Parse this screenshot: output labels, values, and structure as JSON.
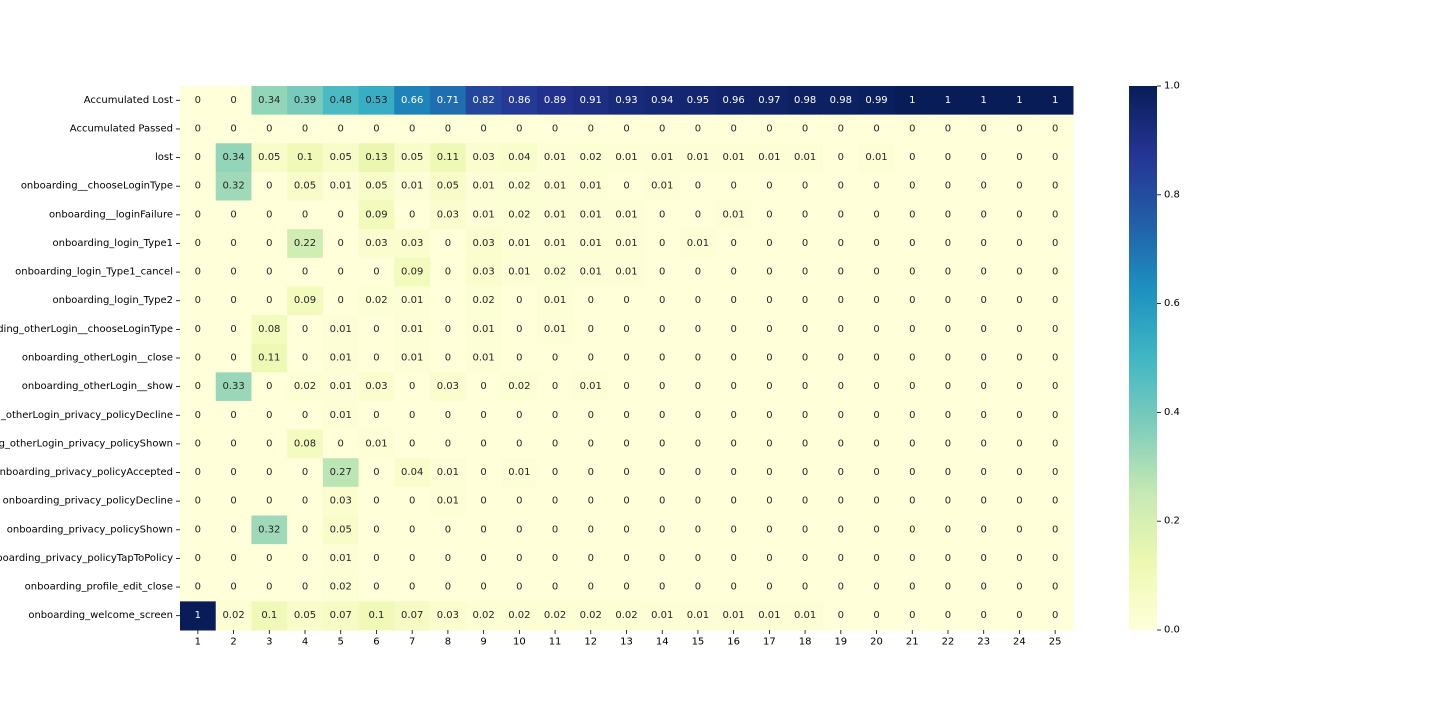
{
  "chart_data": {
    "type": "heatmap",
    "title": "",
    "xlabel": "",
    "ylabel": "",
    "columns": [
      "1",
      "2",
      "3",
      "4",
      "5",
      "6",
      "7",
      "8",
      "9",
      "10",
      "11",
      "12",
      "13",
      "14",
      "15",
      "16",
      "17",
      "18",
      "19",
      "20",
      "21",
      "22",
      "23",
      "24",
      "25"
    ],
    "rows": [
      "Accumulated Lost",
      "Accumulated Passed",
      "lost",
      "onboarding__chooseLoginType",
      "onboarding__loginFailure",
      "onboarding_login_Type1",
      "onboarding_login_Type1_cancel",
      "onboarding_login_Type2",
      "onboarding_otherLogin__chooseLoginType",
      "onboarding_otherLogin__close",
      "onboarding_otherLogin__show",
      "onboarding_otherLogin_privacy_policyDecline",
      "onboarding_otherLogin_privacy_policyShown",
      "onboarding_privacy_policyAccepted",
      "onboarding_privacy_policyDecline",
      "onboarding_privacy_policyShown",
      "onboarding_privacy_policyTapToPolicy",
      "onboarding_profile_edit_close",
      "onboarding_welcome_screen"
    ],
    "values": [
      [
        0,
        0,
        0.34,
        0.39,
        0.48,
        0.53,
        0.66,
        0.71,
        0.82,
        0.86,
        0.89,
        0.91,
        0.93,
        0.94,
        0.95,
        0.96,
        0.97,
        0.98,
        0.98,
        0.99,
        1,
        1,
        1,
        1,
        1
      ],
      [
        0,
        0,
        0,
        0,
        0,
        0,
        0,
        0,
        0,
        0,
        0,
        0,
        0,
        0,
        0,
        0,
        0,
        0,
        0,
        0,
        0,
        0,
        0,
        0,
        0
      ],
      [
        0,
        0.34,
        0.05,
        0.1,
        0.05,
        0.13,
        0.05,
        0.11,
        0.03,
        0.04,
        0.01,
        0.02,
        0.01,
        0.01,
        0.01,
        0.01,
        0.01,
        0.01,
        0,
        0.01,
        0,
        0,
        0,
        0,
        0
      ],
      [
        0,
        0.32,
        0,
        0.05,
        0.01,
        0.05,
        0.01,
        0.05,
        0.01,
        0.02,
        0.01,
        0.01,
        0,
        0.01,
        0,
        0,
        0,
        0,
        0,
        0,
        0,
        0,
        0,
        0,
        0
      ],
      [
        0,
        0,
        0,
        0,
        0,
        0.09,
        0,
        0.03,
        0.01,
        0.02,
        0.01,
        0.01,
        0.01,
        0,
        0,
        0.01,
        0,
        0,
        0,
        0,
        0,
        0,
        0,
        0,
        0
      ],
      [
        0,
        0,
        0,
        0.22,
        0,
        0.03,
        0.03,
        0,
        0.03,
        0.01,
        0.01,
        0.01,
        0.01,
        0,
        0.01,
        0,
        0,
        0,
        0,
        0,
        0,
        0,
        0,
        0,
        0
      ],
      [
        0,
        0,
        0,
        0,
        0,
        0,
        0.09,
        0,
        0.03,
        0.01,
        0.02,
        0.01,
        0.01,
        0,
        0,
        0,
        0,
        0,
        0,
        0,
        0,
        0,
        0,
        0,
        0
      ],
      [
        0,
        0,
        0,
        0.09,
        0,
        0.02,
        0.01,
        0,
        0.02,
        0,
        0.01,
        0,
        0,
        0,
        0,
        0,
        0,
        0,
        0,
        0,
        0,
        0,
        0,
        0,
        0
      ],
      [
        0,
        0,
        0.08,
        0,
        0.01,
        0,
        0.01,
        0,
        0.01,
        0,
        0.01,
        0,
        0,
        0,
        0,
        0,
        0,
        0,
        0,
        0,
        0,
        0,
        0,
        0,
        0
      ],
      [
        0,
        0,
        0.11,
        0,
        0.01,
        0,
        0.01,
        0,
        0.01,
        0,
        0,
        0,
        0,
        0,
        0,
        0,
        0,
        0,
        0,
        0,
        0,
        0,
        0,
        0,
        0
      ],
      [
        0,
        0.33,
        0,
        0.02,
        0.01,
        0.03,
        0,
        0.03,
        0,
        0.02,
        0,
        0.01,
        0,
        0,
        0,
        0,
        0,
        0,
        0,
        0,
        0,
        0,
        0,
        0,
        0
      ],
      [
        0,
        0,
        0,
        0,
        0.01,
        0,
        0,
        0,
        0,
        0,
        0,
        0,
        0,
        0,
        0,
        0,
        0,
        0,
        0,
        0,
        0,
        0,
        0,
        0,
        0
      ],
      [
        0,
        0,
        0,
        0.08,
        0,
        0.01,
        0,
        0,
        0,
        0,
        0,
        0,
        0,
        0,
        0,
        0,
        0,
        0,
        0,
        0,
        0,
        0,
        0,
        0,
        0
      ],
      [
        0,
        0,
        0,
        0,
        0.27,
        0,
        0.04,
        0.01,
        0,
        0.01,
        0,
        0,
        0,
        0,
        0,
        0,
        0,
        0,
        0,
        0,
        0,
        0,
        0,
        0,
        0
      ],
      [
        0,
        0,
        0,
        0,
        0.03,
        0,
        0,
        0.01,
        0,
        0,
        0,
        0,
        0,
        0,
        0,
        0,
        0,
        0,
        0,
        0,
        0,
        0,
        0,
        0,
        0
      ],
      [
        0,
        0,
        0.32,
        0,
        0.05,
        0,
        0,
        0,
        0,
        0,
        0,
        0,
        0,
        0,
        0,
        0,
        0,
        0,
        0,
        0,
        0,
        0,
        0,
        0,
        0
      ],
      [
        0,
        0,
        0,
        0,
        0.01,
        0,
        0,
        0,
        0,
        0,
        0,
        0,
        0,
        0,
        0,
        0,
        0,
        0,
        0,
        0,
        0,
        0,
        0,
        0,
        0
      ],
      [
        0,
        0,
        0,
        0,
        0.02,
        0,
        0,
        0,
        0,
        0,
        0,
        0,
        0,
        0,
        0,
        0,
        0,
        0,
        0,
        0,
        0,
        0,
        0,
        0,
        0
      ],
      [
        1,
        0.02,
        0.1,
        0.05,
        0.07,
        0.1,
        0.07,
        0.03,
        0.02,
        0.02,
        0.02,
        0.02,
        0.02,
        0.01,
        0.01,
        0.01,
        0.01,
        0.01,
        0,
        0,
        0,
        0,
        0,
        0,
        0
      ]
    ],
    "vmin": 0,
    "vmax": 1,
    "colormap": "YlGnBu",
    "colorbar_ticks": [
      "0.0",
      "0.2",
      "0.4",
      "0.6",
      "0.8",
      "1.0"
    ],
    "annotations": true,
    "grid": false,
    "legend": "colorbar-right"
  }
}
